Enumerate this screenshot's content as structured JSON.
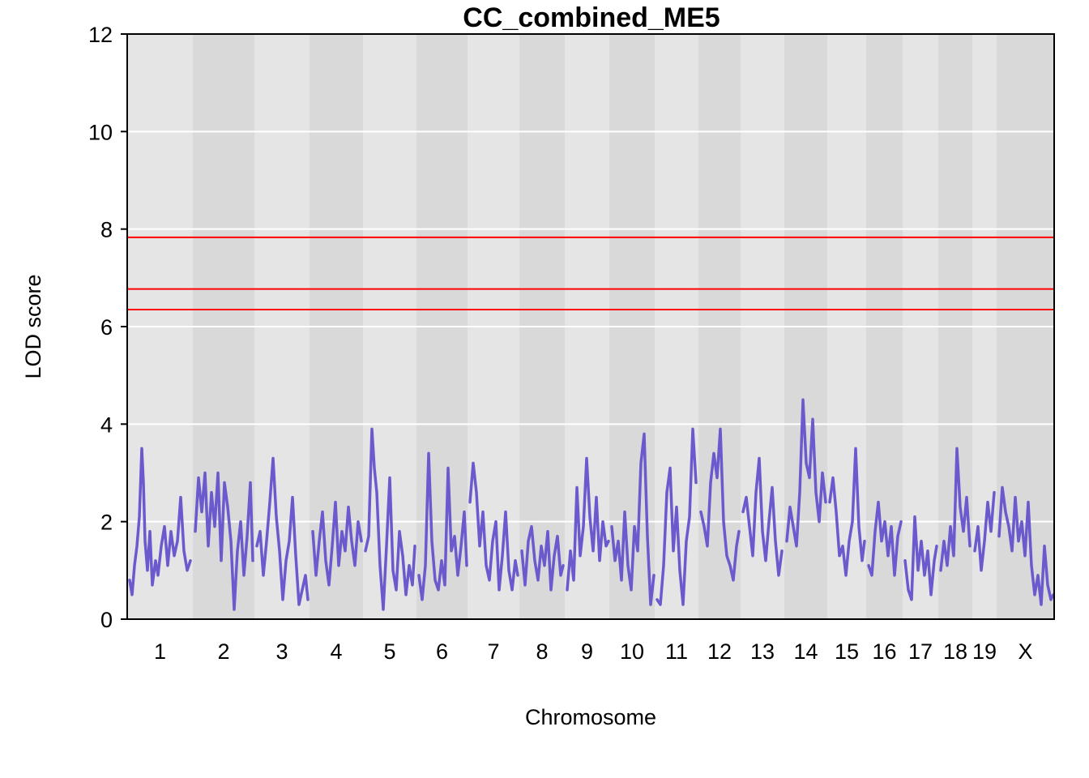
{
  "chart_data": {
    "type": "line",
    "title": "CC_combined_ME5",
    "xlabel": "Chromosome",
    "ylabel": "LOD score",
    "ylim": [
      0,
      12
    ],
    "yticks": [
      "0",
      "2",
      "4",
      "6",
      "8",
      "10",
      "12"
    ],
    "grid": true,
    "legend": "none",
    "colors": {
      "line": "#6a5acd",
      "threshold": "#ff0000",
      "band_light": "#e5e5e5",
      "band_dark": "#d9d9d9",
      "gridline": "#ffffff"
    },
    "thresholds": [
      7.83,
      6.77,
      6.35
    ],
    "chromosomes": [
      {
        "label": "1",
        "start": 0,
        "end": 81
      },
      {
        "label": "2",
        "start": 81,
        "end": 157
      },
      {
        "label": "3",
        "start": 157,
        "end": 225
      },
      {
        "label": "4",
        "start": 225,
        "end": 291
      },
      {
        "label": "5",
        "start": 291,
        "end": 357
      },
      {
        "label": "6",
        "start": 357,
        "end": 420
      },
      {
        "label": "7",
        "start": 420,
        "end": 484
      },
      {
        "label": "8",
        "start": 484,
        "end": 540
      },
      {
        "label": "9",
        "start": 540,
        "end": 595
      },
      {
        "label": "10",
        "start": 595,
        "end": 651
      },
      {
        "label": "11",
        "start": 651,
        "end": 705
      },
      {
        "label": "12",
        "start": 705,
        "end": 757
      },
      {
        "label": "13",
        "start": 757,
        "end": 811
      },
      {
        "label": "14",
        "start": 811,
        "end": 864
      },
      {
        "label": "15",
        "start": 864,
        "end": 912
      },
      {
        "label": "16",
        "start": 912,
        "end": 957
      },
      {
        "label": "17",
        "start": 957,
        "end": 1001
      },
      {
        "label": "18",
        "start": 1001,
        "end": 1043
      },
      {
        "label": "19",
        "start": 1043,
        "end": 1073
      },
      {
        "label": "X",
        "start": 1073,
        "end": 1144
      }
    ],
    "series": [
      {
        "segments": [
          {
            "chr": "1",
            "x": [
              3,
              6,
              9,
              12,
              15,
              18,
              20,
              22,
              25,
              28,
              31,
              35,
              38,
              42,
              46,
              50,
              54,
              58,
              62,
              66,
              70,
              74,
              78
            ],
            "y": [
              0.8,
              0.5,
              1.1,
              1.5,
              2.1,
              3.5,
              2.8,
              1.6,
              1.0,
              1.8,
              0.7,
              1.2,
              0.9,
              1.5,
              1.9,
              1.1,
              1.8,
              1.3,
              1.6,
              2.5,
              1.4,
              1.0,
              1.2
            ]
          },
          {
            "chr": "2",
            "x": [
              84,
              88,
              92,
              96,
              100,
              104,
              108,
              112,
              116,
              120,
              124,
              128,
              132,
              136,
              140,
              144,
              148,
              152,
              155
            ],
            "y": [
              1.8,
              2.9,
              2.2,
              3.0,
              1.5,
              2.6,
              1.9,
              3.0,
              1.2,
              2.8,
              2.3,
              1.6,
              0.2,
              1.4,
              2.0,
              0.9,
              1.7,
              2.8,
              1.2
            ]
          },
          {
            "chr": "3",
            "x": [
              160,
              164,
              168,
              172,
              176,
              180,
              184,
              188,
              192,
              196,
              200,
              204,
              208,
              212,
              216,
              220,
              223
            ],
            "y": [
              1.5,
              1.8,
              0.9,
              1.6,
              2.4,
              3.3,
              2.1,
              1.4,
              0.4,
              1.2,
              1.6,
              2.5,
              1.3,
              0.3,
              0.6,
              0.9,
              0.4
            ]
          },
          {
            "chr": "4",
            "x": [
              229,
              233,
              237,
              241,
              245,
              249,
              253,
              257,
              261,
              265,
              269,
              273,
              277,
              281,
              285,
              289
            ],
            "y": [
              1.8,
              0.9,
              1.6,
              2.2,
              1.2,
              0.7,
              1.5,
              2.4,
              1.1,
              1.8,
              1.4,
              2.3,
              1.6,
              1.1,
              2.0,
              1.6
            ]
          },
          {
            "chr": "5",
            "x": [
              294,
              298,
              302,
              305,
              308,
              312,
              316,
              320,
              324,
              328,
              332,
              336,
              340,
              344,
              348,
              352,
              355
            ],
            "y": [
              1.4,
              1.7,
              3.9,
              3.1,
              2.6,
              1.1,
              0.2,
              1.5,
              2.9,
              1.0,
              0.6,
              1.8,
              1.3,
              0.5,
              1.1,
              0.7,
              1.5
            ]
          },
          {
            "chr": "6",
            "x": [
              360,
              364,
              368,
              372,
              376,
              380,
              384,
              388,
              392,
              396,
              400,
              404,
              408,
              412,
              416,
              419
            ],
            "y": [
              0.9,
              0.4,
              1.1,
              3.4,
              1.6,
              0.8,
              0.6,
              1.2,
              0.7,
              3.1,
              1.4,
              1.7,
              0.9,
              1.5,
              2.2,
              1.1
            ]
          },
          {
            "chr": "7",
            "x": [
              423,
              427,
              431,
              435,
              439,
              443,
              447,
              451,
              455,
              459,
              463,
              467,
              471,
              475,
              479,
              482
            ],
            "y": [
              2.4,
              3.2,
              2.6,
              1.5,
              2.2,
              1.1,
              0.8,
              1.6,
              2.0,
              0.6,
              1.3,
              2.2,
              1.0,
              0.6,
              1.2,
              0.9
            ]
          },
          {
            "chr": "8",
            "x": [
              487,
              491,
              495,
              499,
              503,
              507,
              511,
              515,
              519,
              523,
              527,
              531,
              535,
              538
            ],
            "y": [
              1.4,
              0.7,
              1.6,
              1.9,
              1.2,
              0.8,
              1.5,
              1.1,
              1.8,
              0.6,
              1.3,
              1.7,
              0.9,
              1.1
            ]
          },
          {
            "chr": "9",
            "x": [
              543,
              547,
              551,
              555,
              559,
              563,
              567,
              571,
              575,
              579,
              583,
              587,
              591,
              594
            ],
            "y": [
              0.6,
              1.4,
              0.8,
              2.7,
              1.3,
              1.9,
              3.3,
              2.1,
              1.4,
              2.5,
              1.2,
              2.0,
              1.5,
              1.6
            ]
          },
          {
            "chr": "10",
            "x": [
              598,
              602,
              606,
              610,
              614,
              618,
              622,
              626,
              630,
              634,
              638,
              642,
              646,
              650
            ],
            "y": [
              1.9,
              1.2,
              1.6,
              0.8,
              2.2,
              1.1,
              0.6,
              1.9,
              1.4,
              3.2,
              3.8,
              1.7,
              0.3,
              0.9
            ]
          },
          {
            "chr": "11",
            "x": [
              654,
              658,
              662,
              666,
              670,
              674,
              678,
              682,
              686,
              690,
              694,
              698,
              702
            ],
            "y": [
              0.4,
              0.3,
              1.1,
              2.6,
              3.1,
              1.4,
              2.3,
              1.0,
              0.3,
              1.6,
              2.1,
              3.9,
              2.8
            ]
          },
          {
            "chr": "12",
            "x": [
              708,
              712,
              716,
              720,
              724,
              728,
              732,
              736,
              740,
              744,
              748,
              752,
              755
            ],
            "y": [
              2.2,
              1.9,
              1.5,
              2.8,
              3.4,
              2.9,
              3.9,
              2.0,
              1.3,
              1.1,
              0.8,
              1.5,
              1.8
            ]
          },
          {
            "chr": "13",
            "x": [
              760,
              764,
              768,
              772,
              776,
              780,
              784,
              788,
              792,
              796,
              800,
              804,
              808
            ],
            "y": [
              2.2,
              2.5,
              1.9,
              1.3,
              2.6,
              3.3,
              1.8,
              1.2,
              2.0,
              2.7,
              1.6,
              0.9,
              1.4
            ]
          },
          {
            "chr": "14",
            "x": [
              814,
              818,
              822,
              826,
              830,
              834,
              838,
              842,
              846,
              850,
              854,
              858,
              862
            ],
            "y": [
              1.6,
              2.3,
              1.9,
              1.5,
              2.6,
              4.5,
              3.2,
              2.9,
              4.1,
              2.6,
              2.0,
              3.0,
              2.4
            ]
          },
          {
            "chr": "15",
            "x": [
              867,
              871,
              875,
              879,
              883,
              887,
              891,
              895,
              899,
              903,
              907,
              910
            ],
            "y": [
              2.4,
              2.9,
              2.2,
              1.3,
              1.5,
              0.9,
              1.6,
              2.0,
              3.5,
              1.9,
              1.2,
              1.6
            ]
          },
          {
            "chr": "16",
            "x": [
              915,
              919,
              923,
              927,
              931,
              935,
              939,
              943,
              947,
              951,
              955
            ],
            "y": [
              1.1,
              0.9,
              1.8,
              2.4,
              1.6,
              2.0,
              1.3,
              1.9,
              0.9,
              1.7,
              2.0
            ]
          },
          {
            "chr": "17",
            "x": [
              960,
              964,
              968,
              972,
              976,
              980,
              984,
              988,
              992,
              996,
              999
            ],
            "y": [
              1.2,
              0.6,
              0.4,
              2.1,
              1.0,
              1.6,
              0.9,
              1.4,
              0.5,
              1.2,
              1.5
            ]
          },
          {
            "chr": "18",
            "x": [
              1004,
              1008,
              1012,
              1016,
              1020,
              1024,
              1028,
              1032,
              1036,
              1040
            ],
            "y": [
              1.0,
              1.6,
              1.1,
              1.9,
              1.3,
              3.5,
              2.3,
              1.8,
              2.5,
              1.5
            ]
          },
          {
            "chr": "19",
            "x": [
              1046,
              1050,
              1054,
              1058,
              1062,
              1066,
              1070
            ],
            "y": [
              1.4,
              1.9,
              1.0,
              1.6,
              2.4,
              1.8,
              2.6
            ]
          },
          {
            "chr": "X",
            "x": [
              1076,
              1080,
              1084,
              1088,
              1092,
              1096,
              1100,
              1104,
              1108,
              1112,
              1116,
              1120,
              1124,
              1128,
              1132,
              1136,
              1140,
              1143
            ],
            "y": [
              1.7,
              2.7,
              2.2,
              1.9,
              1.4,
              2.5,
              1.6,
              2.0,
              1.3,
              2.4,
              1.1,
              0.5,
              0.9,
              0.3,
              1.5,
              0.7,
              0.4,
              0.5
            ]
          }
        ]
      }
    ]
  }
}
